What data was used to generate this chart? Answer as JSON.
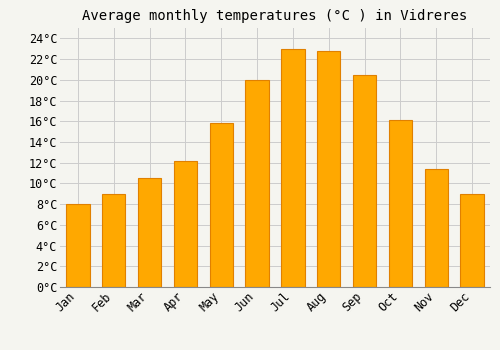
{
  "title": "Average monthly temperatures (°C ) in Vidreres",
  "months": [
    "Jan",
    "Feb",
    "Mar",
    "Apr",
    "May",
    "Jun",
    "Jul",
    "Aug",
    "Sep",
    "Oct",
    "Nov",
    "Dec"
  ],
  "values": [
    8.0,
    9.0,
    10.5,
    12.2,
    15.8,
    20.0,
    23.0,
    22.8,
    20.5,
    16.1,
    11.4,
    9.0
  ],
  "bar_color": "#FFA800",
  "bar_edge_color": "#E08000",
  "background_color": "#F5F5F0",
  "grid_color": "#CCCCCC",
  "ylim": [
    0,
    25
  ],
  "yticks": [
    0,
    2,
    4,
    6,
    8,
    10,
    12,
    14,
    16,
    18,
    20,
    22,
    24
  ],
  "title_fontsize": 10,
  "tick_fontsize": 8.5,
  "font_family": "monospace",
  "bar_width": 0.65
}
